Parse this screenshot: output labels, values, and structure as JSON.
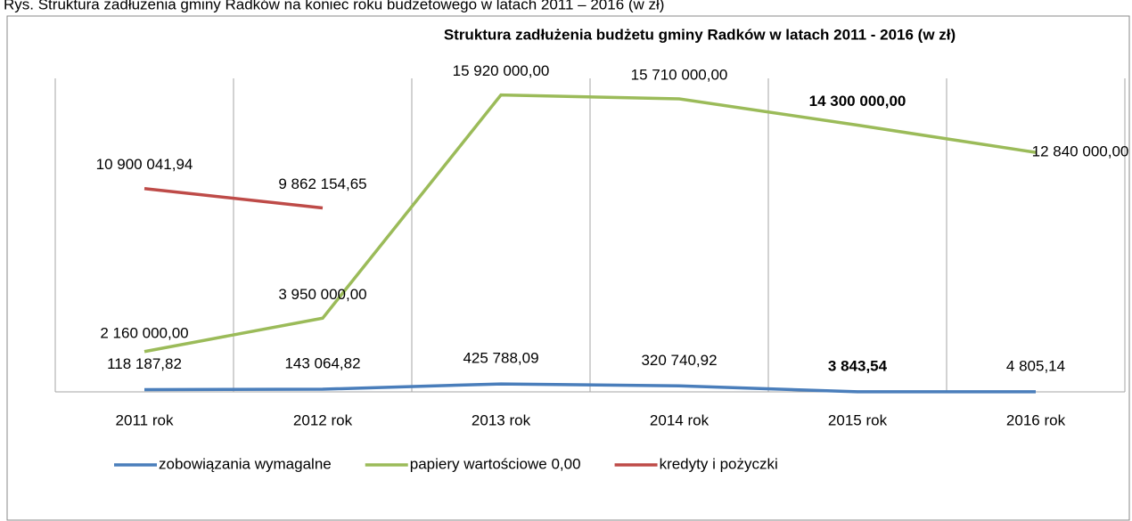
{
  "chart_data": {
    "type": "line",
    "caption": "Rys. Struktura zadłużenia gminy Radków na koniec roku budżetowego w latach 2011 – 2016  (w zł)",
    "title": "Struktura zadłużenia budżetu gminy Radków w latach 2011 - 2016  (w zł)",
    "categories": [
      "2011 rok",
      "2012 rok",
      "2013 rok",
      "2014 rok",
      "2015 rok",
      "2016 rok"
    ],
    "series": [
      {
        "name": "zobowiązania wymagalne",
        "color": "#4a7ebb",
        "values": [
          118187.82,
          143064.82,
          425788.09,
          320740.92,
          3843.54,
          4805.14
        ],
        "value_labels": [
          "118 187,82",
          "143 064,82",
          "425 788,09",
          "320 740,92",
          "3 843,54",
          "4 805,14"
        ]
      },
      {
        "name": "papiery wartościowe 0,00",
        "color": "#9bbb59",
        "values": [
          2160000,
          3950000,
          15920000,
          15710000,
          14300000,
          12840000
        ],
        "value_labels": [
          "2 160 000,00",
          "3 950 000,00",
          "15 920 000,00",
          "15 710 000,00",
          "14 300 000,00",
          "12 840 000,00"
        ]
      },
      {
        "name": "kredyty i pożyczki",
        "color": "#be4b48",
        "values": [
          10900041.94,
          9862154.65,
          null,
          null,
          null,
          null
        ],
        "value_labels": [
          "10 900 041,94",
          "9 862 154,65",
          null,
          null,
          null,
          null
        ]
      }
    ],
    "ylim": [
      0,
      17000000
    ],
    "grid": true,
    "legend": "bottom"
  }
}
